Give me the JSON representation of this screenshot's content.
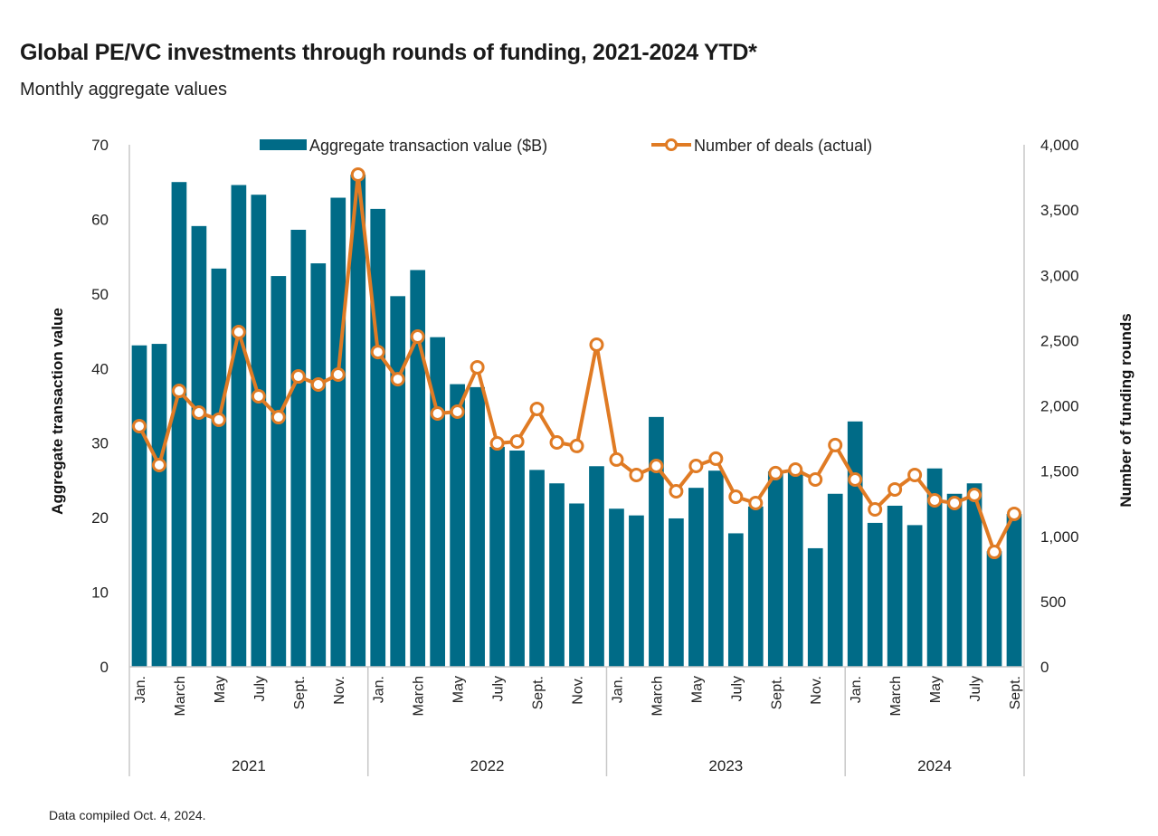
{
  "header": {
    "title": "Global PE/VC investments through rounds of funding, 2021-2024 YTD*",
    "subtitle": "Monthly aggregate values"
  },
  "footer": {
    "note": "Data compiled Oct. 4, 2024."
  },
  "colors": {
    "bar": "#006b87",
    "line": "#e07b24",
    "marker_fill": "#ffffff",
    "axis": "#c8c8c8"
  },
  "chart_data": {
    "type": "bar",
    "title": "Global PE/VC investments through rounds of funding, 2021-2024 YTD*",
    "subtitle": "Monthly aggregate values",
    "ylabel": "Aggregate transaction value",
    "y2label": "Number of funding rounds",
    "ylim": [
      0,
      70
    ],
    "y2lim": [
      0,
      4000
    ],
    "yticks": [
      "0",
      "10",
      "20",
      "30",
      "40",
      "50",
      "60",
      "70"
    ],
    "y2ticks": [
      "0",
      "500",
      "1,000",
      "1,500",
      "2,000",
      "2,500",
      "3,000",
      "3,500",
      "4,000"
    ],
    "legend_position": "top",
    "grid": false,
    "years": [
      "2021",
      "2022",
      "2023",
      "2024"
    ],
    "month_labels": [
      "Jan.",
      "",
      "March",
      "",
      "May",
      "",
      "July",
      "",
      "Sept.",
      "",
      "Nov.",
      "",
      "Jan.",
      "",
      "March",
      "",
      "May",
      "",
      "July",
      "",
      "Sept.",
      "",
      "Nov.",
      "",
      "Jan.",
      "",
      "March",
      "",
      "May",
      "",
      "July",
      "",
      "Sept.",
      "",
      "Nov.",
      "",
      "Jan.",
      "",
      "March",
      "",
      "May",
      "",
      "July",
      "",
      "Sept."
    ],
    "series": [
      {
        "name": "Aggregate transaction value ($B)",
        "type": "bar",
        "axis": "left",
        "values": [
          43.1,
          43.3,
          65.0,
          59.1,
          53.4,
          64.6,
          63.3,
          52.4,
          58.6,
          54.1,
          62.9,
          66.0,
          61.4,
          49.7,
          53.2,
          44.2,
          37.9,
          37.5,
          29.5,
          29.0,
          26.4,
          24.6,
          21.9,
          26.9,
          21.2,
          20.3,
          33.5,
          19.9,
          24.0,
          26.3,
          17.9,
          21.5,
          26.2,
          26.3,
          15.9,
          23.2,
          32.9,
          19.3,
          21.6,
          19.0,
          26.6,
          23.2,
          24.6,
          15.5,
          20.5
        ]
      },
      {
        "name": "Number of deals (actual)",
        "type": "line",
        "axis": "right",
        "values": [
          1844,
          1546,
          2114,
          1948,
          1893,
          2565,
          2073,
          1913,
          2225,
          2163,
          2239,
          3771,
          2412,
          2204,
          2530,
          1941,
          1955,
          2295,
          1712,
          1726,
          1976,
          1719,
          1692,
          2468,
          1588,
          1470,
          1539,
          1345,
          1539,
          1595,
          1303,
          1255,
          1484,
          1511,
          1435,
          1699,
          1435,
          1206,
          1359,
          1470,
          1276,
          1255,
          1317,
          880,
          1172
        ]
      }
    ]
  }
}
